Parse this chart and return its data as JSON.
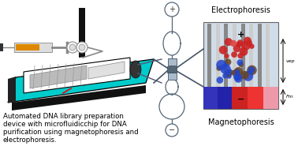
{
  "bg_color": "#ffffff",
  "text_lines": [
    "Automated DNA library preparation",
    "device with microfluidicchip for DNA",
    "purification using magnetophoresis and",
    "electrophoresis."
  ],
  "text_fontsize": 6.2,
  "electrophoresis_label": "Electrophoresis",
  "magnetophoresis_label": "Magnetophoresis",
  "vep_label": "vep",
  "fm_label": "Fm",
  "chip_bg": "#00cccc",
  "box_right_bg": "#dde8f0",
  "particle_red": "#cc2222",
  "particle_blue": "#2244cc"
}
